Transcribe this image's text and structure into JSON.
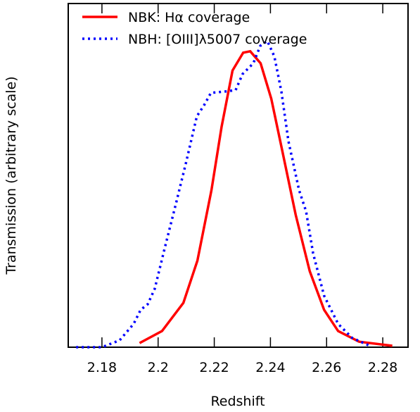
{
  "chart_data": {
    "type": "line",
    "xlabel": "Redshift",
    "ylabel": "Transmission (arbitrary scale)",
    "xlim": [
      2.168,
      2.289
    ],
    "xticks": [
      2.18,
      2.2,
      2.22,
      2.24,
      2.26,
      2.28
    ],
    "ylim": [
      0,
      1
    ],
    "legend": "upper left",
    "series": [
      {
        "name": "NBK: Hα coverage",
        "color": "#ff0000",
        "dash": "solid",
        "x": [
          2.1934,
          2.2014,
          2.209,
          2.214,
          2.219,
          2.2226,
          2.2265,
          2.2303,
          2.2328,
          2.2365,
          2.2403,
          2.244,
          2.249,
          2.254,
          2.2591,
          2.2641,
          2.2716,
          2.2834
        ],
        "values": [
          0.012,
          0.047,
          0.129,
          0.252,
          0.457,
          0.641,
          0.805,
          0.857,
          0.861,
          0.826,
          0.723,
          0.58,
          0.385,
          0.221,
          0.109,
          0.047,
          0.016,
          0.004
        ]
      },
      {
        "name": "NBH: [OIII]λ5007 coverage",
        "color": "#0000ff",
        "dash": "dotted",
        "x": [
          2.1708,
          2.18,
          2.1863,
          2.1913,
          2.1938,
          2.1963,
          2.1988,
          2.2025,
          2.2063,
          2.21,
          2.2138,
          2.2163,
          2.2188,
          2.2239,
          2.2276,
          2.2301,
          2.2339,
          2.2364,
          2.2389,
          2.2414,
          2.2439,
          2.2464,
          2.2502,
          2.2527,
          2.2552,
          2.2591,
          2.2641,
          2.2691,
          2.2754
        ],
        "values": [
          0,
          0,
          0.02,
          0.068,
          0.109,
          0.125,
          0.17,
          0.293,
          0.416,
          0.539,
          0.672,
          0.703,
          0.74,
          0.744,
          0.748,
          0.795,
          0.826,
          0.877,
          0.891,
          0.846,
          0.744,
          0.6,
          0.457,
          0.395,
          0.273,
          0.15,
          0.068,
          0.027,
          0.004
        ]
      }
    ]
  }
}
